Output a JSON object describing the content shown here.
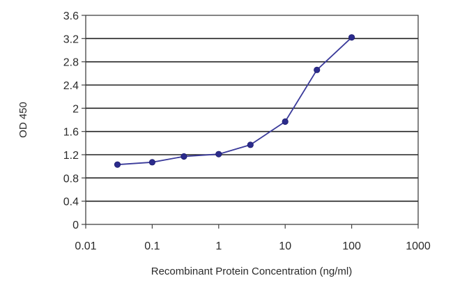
{
  "chart_data": {
    "type": "line",
    "xscale": "log",
    "xlim": [
      0.01,
      1000
    ],
    "ylim": [
      0,
      3.6
    ],
    "xticks": [
      "0.01",
      "0.1",
      "1",
      "10",
      "100",
      "1000"
    ],
    "yticks": [
      "0",
      "0.4",
      "0.8",
      "1.2",
      "1.6",
      "2",
      "2.4",
      "2.8",
      "3.2",
      "3.6"
    ],
    "xlabel": "Recombinant Protein Concentration (ng/ml)",
    "ylabel": "OD 450",
    "grid": "horizontal",
    "series": [
      {
        "x": [
          0.03,
          0.1,
          0.3,
          1,
          3,
          10,
          30,
          100
        ],
        "y": [
          1.03,
          1.07,
          1.17,
          1.21,
          1.37,
          1.77,
          2.66,
          3.22
        ]
      }
    ],
    "colors": {
      "line": "#3a3a9a",
      "marker": "#2b2b8c"
    }
  }
}
